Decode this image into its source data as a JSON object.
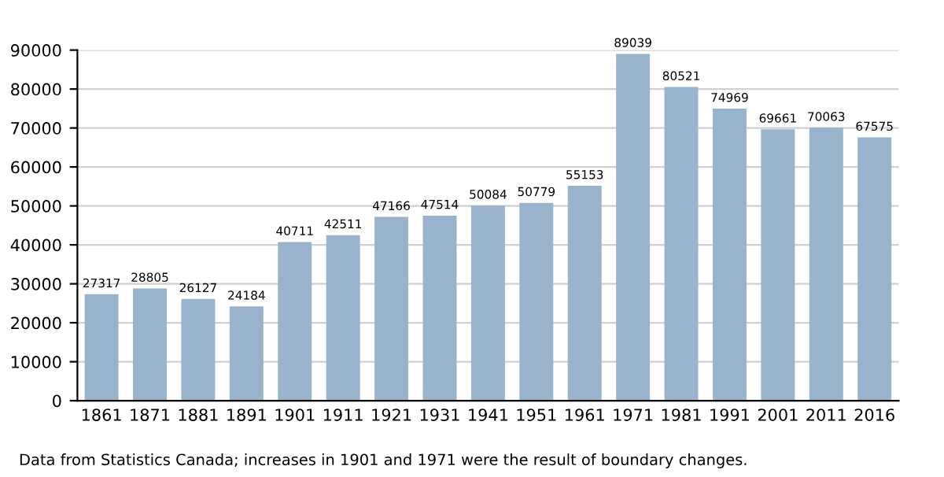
{
  "chart_data": {
    "type": "bar",
    "categories": [
      "1861",
      "1871",
      "1881",
      "1891",
      "1901",
      "1911",
      "1921",
      "1931",
      "1941",
      "1951",
      "1961",
      "1971",
      "1981",
      "1991",
      "2001",
      "2011",
      "2016"
    ],
    "values": [
      27317,
      28805,
      26127,
      24184,
      40711,
      42511,
      47166,
      47514,
      50084,
      50779,
      55153,
      89039,
      80521,
      74969,
      69661,
      70063,
      67575
    ],
    "color": "#9ab3cc",
    "ylim": [
      0,
      90000
    ],
    "yticks": [
      0,
      10000,
      20000,
      30000,
      40000,
      50000,
      60000,
      70000,
      80000,
      90000
    ],
    "grid": "y",
    "data_labels": true,
    "annotations": [
      "Data from Statistics Canada; increases in 1901 and 1971 were the result of boundary changes."
    ]
  }
}
